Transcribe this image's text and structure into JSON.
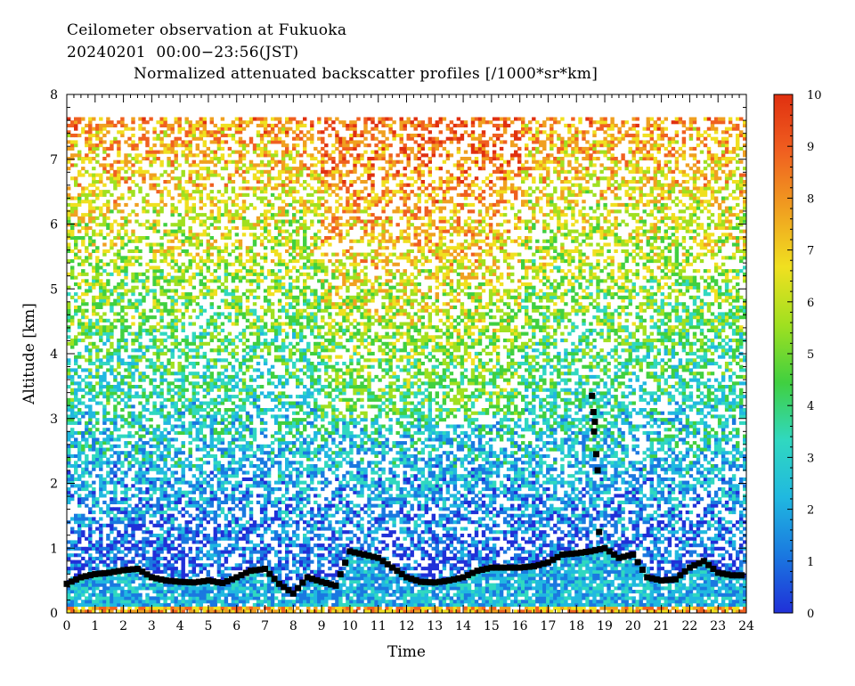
{
  "titles": {
    "line1": "Ceilometer observation at Fukuoka",
    "line2": "20240201  00:00−23:56(JST)",
    "line3": "Normalized attenuated backscatter profiles [/1000*sr*km]"
  },
  "chart_data": {
    "type": "heatmap",
    "xlabel": "Time",
    "ylabel": "Altitude [km]",
    "xlim": [
      0,
      24
    ],
    "ylim": [
      0,
      8
    ],
    "xticks": [
      0,
      1,
      2,
      3,
      4,
      5,
      6,
      7,
      8,
      9,
      10,
      11,
      12,
      13,
      14,
      15,
      16,
      17,
      18,
      19,
      20,
      21,
      22,
      23,
      24
    ],
    "yticks": [
      0,
      1,
      2,
      3,
      4,
      5,
      6,
      7,
      8
    ],
    "colorbar": {
      "min": 0,
      "max": 10,
      "ticks": [
        0,
        1,
        2,
        3,
        4,
        5,
        6,
        7,
        8,
        9,
        10
      ],
      "stops": [
        "#2030d8",
        "#1a78e0",
        "#20b8e0",
        "#30d8c0",
        "#40d040",
        "#a0e020",
        "#f0e020",
        "#f0a020",
        "#f06020",
        "#e03010"
      ]
    },
    "data_top_km": 7.65,
    "boundary_layer_height_km": [
      [
        0.0,
        0.45
      ],
      [
        0.5,
        0.55
      ],
      [
        1.0,
        0.6
      ],
      [
        1.5,
        0.62
      ],
      [
        2.0,
        0.66
      ],
      [
        2.5,
        0.68
      ],
      [
        3.0,
        0.55
      ],
      [
        3.5,
        0.5
      ],
      [
        4.0,
        0.48
      ],
      [
        4.5,
        0.47
      ],
      [
        5.0,
        0.5
      ],
      [
        5.5,
        0.46
      ],
      [
        6.0,
        0.55
      ],
      [
        6.5,
        0.65
      ],
      [
        7.0,
        0.68
      ],
      [
        7.5,
        0.45
      ],
      [
        8.0,
        0.3
      ],
      [
        8.5,
        0.55
      ],
      [
        9.0,
        0.48
      ],
      [
        9.5,
        0.42
      ],
      [
        10.0,
        0.95
      ],
      [
        10.5,
        0.9
      ],
      [
        11.0,
        0.85
      ],
      [
        11.5,
        0.7
      ],
      [
        12.0,
        0.55
      ],
      [
        12.5,
        0.48
      ],
      [
        13.0,
        0.47
      ],
      [
        13.5,
        0.5
      ],
      [
        14.0,
        0.55
      ],
      [
        14.5,
        0.65
      ],
      [
        15.0,
        0.7
      ],
      [
        15.5,
        0.7
      ],
      [
        16.0,
        0.7
      ],
      [
        16.5,
        0.72
      ],
      [
        17.0,
        0.78
      ],
      [
        17.5,
        0.9
      ],
      [
        18.0,
        0.92
      ],
      [
        18.5,
        0.95
      ],
      [
        19.0,
        1.0
      ],
      [
        19.5,
        0.85
      ],
      [
        20.0,
        0.9
      ],
      [
        20.5,
        0.55
      ],
      [
        21.0,
        0.5
      ],
      [
        21.5,
        0.52
      ],
      [
        22.0,
        0.7
      ],
      [
        22.5,
        0.8
      ],
      [
        23.0,
        0.62
      ],
      [
        23.5,
        0.58
      ],
      [
        24.0,
        0.58
      ]
    ],
    "cloud_base_points_km": [
      [
        18.55,
        3.35
      ],
      [
        18.6,
        3.1
      ],
      [
        18.65,
        2.95
      ],
      [
        18.62,
        2.8
      ],
      [
        18.7,
        2.45
      ],
      [
        18.75,
        2.2
      ],
      [
        18.8,
        1.25
      ]
    ]
  }
}
